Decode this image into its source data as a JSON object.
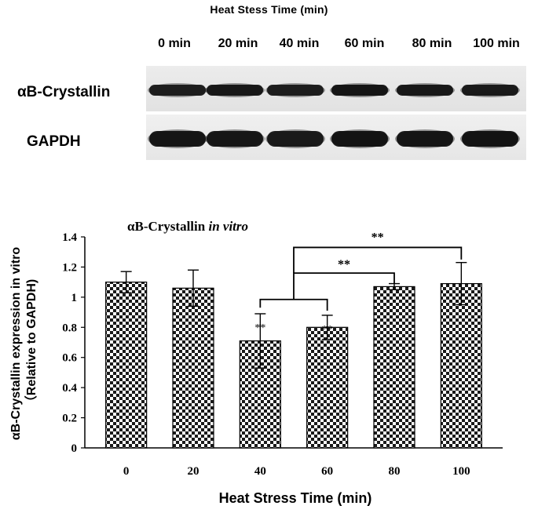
{
  "blot": {
    "title": "Heat Stess Time (min)",
    "lanes": [
      "0 min",
      "20 min",
      "40 min",
      "60 min",
      "80 min",
      "100 min"
    ],
    "rows": [
      {
        "label": "αB-Crystallin",
        "band_intensity": [
          0.8,
          0.9,
          0.8,
          0.95,
          0.9,
          0.88
        ]
      },
      {
        "label": "GAPDH",
        "band_intensity": [
          0.95,
          0.92,
          0.9,
          1.0,
          0.95,
          1.0
        ]
      }
    ]
  },
  "chart_data": {
    "type": "bar",
    "title_text": "αB-Crystallin",
    "title_italic": "in vitro",
    "xlabel": "Heat Stress Time (min)",
    "ylabel_line1": "αB-Crystallin expression in vitro",
    "ylabel_line2": "（Relative to GAPDH)",
    "categories": [
      "0",
      "20",
      "40",
      "60",
      "80",
      "100"
    ],
    "values": [
      1.1,
      1.06,
      0.71,
      0.8,
      1.07,
      1.09
    ],
    "errors": [
      0.07,
      0.12,
      0.18,
      0.08,
      0.02,
      0.14
    ],
    "ylim": [
      0,
      1.4
    ],
    "yticks": [
      "0",
      "0.2",
      "0.4",
      "0.6",
      "0.8",
      "1",
      "1.2",
      "1.4"
    ],
    "bar_marks": [
      "",
      "",
      "**",
      "**",
      "",
      ""
    ],
    "bracket_label": "**",
    "bracket_labels": [
      "**",
      "**"
    ],
    "pattern": "checkerboard",
    "grid": false,
    "legend": "none"
  }
}
